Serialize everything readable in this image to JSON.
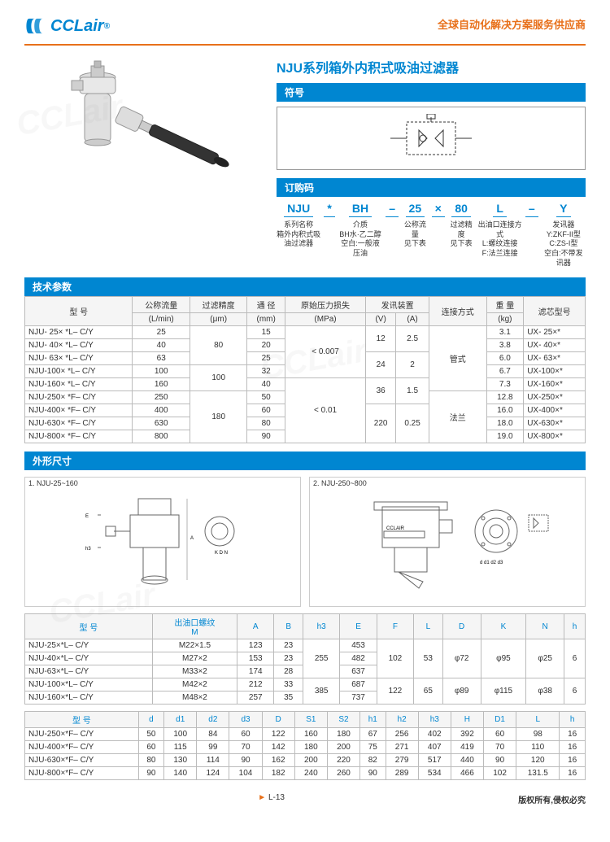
{
  "header": {
    "brand": "CCLair",
    "reg_mark": "®",
    "slogan": "全球自动化解决方案服务供应商"
  },
  "page_title": "NJU系列箱外内积式吸油过滤器",
  "sections": {
    "symbol": "符号",
    "order_code": "订购码",
    "tech_params": "技术参数",
    "dims": "外形尺寸"
  },
  "order_code": {
    "parts": [
      {
        "main": "NJU",
        "label": "系列名称",
        "sub": "箱外内积式吸油过滤器"
      },
      {
        "main": "*",
        "label": "",
        "sub": ""
      },
      {
        "main": "BH",
        "label": "介质",
        "sub": "BH水·乙二醇\n空白:一般液压油"
      },
      {
        "main": "–",
        "label": "",
        "sub": ""
      },
      {
        "main": "25",
        "label": "公称流量",
        "sub": "见下表"
      },
      {
        "main": "×",
        "label": "",
        "sub": ""
      },
      {
        "main": "80",
        "label": "过滤精度",
        "sub": "见下表"
      },
      {
        "main": "L",
        "label": "出油口连接方式",
        "sub": "L:螺纹连接\nF:法兰连接"
      },
      {
        "main": "–",
        "label": "",
        "sub": ""
      },
      {
        "main": "Y",
        "label": "发讯器",
        "sub": "Y:ZKF-II型\nC:ZS-I型\n空白:不带发讯器"
      }
    ]
  },
  "tech_params": {
    "columns": [
      "型 号",
      "公称流量\n(L/min)",
      "过滤精度\n(μm)",
      "通 径\n(mm)",
      "原始压力损失\n(MPa)",
      "发讯装置 (V)",
      "发讯装置 (A)",
      "连接方式",
      "重 量\n(kg)",
      "滤芯型号"
    ],
    "rows": [
      {
        "model": "NJU- 25× *L– C/Y",
        "flow": "25",
        "prec": "80",
        "dia": "15",
        "drop": "< 0.007",
        "v": "12",
        "a": "2.5",
        "conn": "管式",
        "wt": "3.1",
        "core": "UX- 25×*"
      },
      {
        "model": "NJU- 40× *L– C/Y",
        "flow": "40",
        "prec": "80",
        "dia": "20",
        "drop": "< 0.007",
        "v": "12",
        "a": "2.5",
        "conn": "管式",
        "wt": "3.8",
        "core": "UX- 40×*"
      },
      {
        "model": "NJU- 63× *L– C/Y",
        "flow": "63",
        "prec": "80",
        "dia": "25",
        "drop": "< 0.007",
        "v": "24",
        "a": "2",
        "conn": "管式",
        "wt": "6.0",
        "core": "UX- 63×*"
      },
      {
        "model": "NJU-100× *L– C/Y",
        "flow": "100",
        "prec": "100",
        "dia": "32",
        "drop": "< 0.007",
        "v": "24",
        "a": "2",
        "conn": "管式",
        "wt": "6.7",
        "core": "UX-100×*"
      },
      {
        "model": "NJU-160× *L– C/Y",
        "flow": "160",
        "prec": "100",
        "dia": "40",
        "drop": "< 0.01",
        "v": "36",
        "a": "1.5",
        "conn": "管式",
        "wt": "7.3",
        "core": "UX-160×*"
      },
      {
        "model": "NJU-250× *F– C/Y",
        "flow": "250",
        "prec": "180",
        "dia": "50",
        "drop": "< 0.01",
        "v": "36",
        "a": "1.5",
        "conn": "法兰",
        "wt": "12.8",
        "core": "UX-250×*"
      },
      {
        "model": "NJU-400× *F– C/Y",
        "flow": "400",
        "prec": "180",
        "dia": "60",
        "drop": "< 0.01",
        "v": "220",
        "a": "0.25",
        "conn": "法兰",
        "wt": "16.0",
        "core": "UX-400×*"
      },
      {
        "model": "NJU-630× *F– C/Y",
        "flow": "630",
        "prec": "180",
        "dia": "80",
        "drop": "< 0.01",
        "v": "220",
        "a": "0.25",
        "conn": "法兰",
        "wt": "18.0",
        "core": "UX-630×*"
      },
      {
        "model": "NJU-800× *F– C/Y",
        "flow": "800",
        "prec": "180",
        "dia": "90",
        "drop": "< 0.01",
        "v": "220",
        "a": "0.25",
        "conn": "法兰",
        "wt": "19.0",
        "core": "UX-800×*"
      }
    ],
    "merge_prec": [
      [
        "80",
        3
      ],
      [
        "100",
        2
      ],
      [
        "180",
        4
      ]
    ],
    "merge_drop": [
      [
        "< 0.007",
        4
      ],
      [
        "< 0.01",
        5
      ]
    ],
    "merge_v": [
      [
        "12",
        2
      ],
      [
        "24",
        2
      ],
      [
        "36",
        2
      ],
      [
        "220",
        3
      ]
    ],
    "merge_a": [
      [
        "2.5",
        2
      ],
      [
        "2",
        2
      ],
      [
        "1.5",
        2
      ],
      [
        "0.25",
        3
      ]
    ],
    "merge_conn": [
      [
        "管式",
        5
      ],
      [
        "法兰",
        4
      ]
    ]
  },
  "dim_titles": [
    "1. NJU-25~160",
    "2. NJU-250~800"
  ],
  "dim_table1": {
    "columns": [
      "型 号",
      "出油口螺纹\nM",
      "A",
      "B",
      "h3",
      "E",
      "F",
      "L",
      "D",
      "K",
      "N",
      "h"
    ],
    "rows": [
      [
        "NJU-25×*L– C/Y",
        "M22×1.5",
        "123",
        "23",
        "255",
        "453",
        "102",
        "53",
        "φ72",
        "φ95",
        "φ25",
        "6"
      ],
      [
        "NJU-40×*L– C/Y",
        "M27×2",
        "153",
        "23",
        "255",
        "482",
        "102",
        "53",
        "φ72",
        "φ95",
        "φ25",
        "6"
      ],
      [
        "NJU-63×*L– C/Y",
        "M33×2",
        "174",
        "28",
        "255",
        "637",
        "102",
        "53",
        "φ72",
        "φ95",
        "φ25",
        "6"
      ],
      [
        "NJU-100×*L– C/Y",
        "M42×2",
        "212",
        "33",
        "385",
        "687",
        "122",
        "65",
        "φ89",
        "φ115",
        "φ38",
        "6"
      ],
      [
        "NJU-160×*L– C/Y",
        "M48×2",
        "257",
        "35",
        "385",
        "737",
        "122",
        "65",
        "φ89",
        "φ115",
        "φ38",
        "6"
      ]
    ],
    "merge_h3": [
      [
        "255",
        3
      ],
      [
        "385",
        2
      ]
    ],
    "merge_F": [
      [
        "102",
        3
      ],
      [
        "122",
        2
      ]
    ],
    "merge_L": [
      [
        "53",
        3
      ],
      [
        "65",
        2
      ]
    ],
    "merge_D": [
      [
        "φ72",
        3
      ],
      [
        "φ89",
        2
      ]
    ],
    "merge_K": [
      [
        "φ95",
        3
      ],
      [
        "φ115",
        2
      ]
    ],
    "merge_N": [
      [
        "φ25",
        3
      ],
      [
        "φ38",
        2
      ]
    ],
    "merge_h": [
      [
        "6",
        3
      ],
      [
        "6",
        2
      ]
    ]
  },
  "dim_table2": {
    "columns": [
      "型 号",
      "d",
      "d1",
      "d2",
      "d3",
      "D",
      "S1",
      "S2",
      "h1",
      "h2",
      "h3",
      "H",
      "D1",
      "L",
      "h"
    ],
    "rows": [
      [
        "NJU-250×*F– C/Y",
        "50",
        "100",
        "84",
        "60",
        "122",
        "160",
        "180",
        "67",
        "256",
        "402",
        "392",
        "60",
        "98",
        "16"
      ],
      [
        "NJU-400×*F– C/Y",
        "60",
        "115",
        "99",
        "70",
        "142",
        "180",
        "200",
        "75",
        "271",
        "407",
        "419",
        "70",
        "110",
        "16"
      ],
      [
        "NJU-630×*F– C/Y",
        "80",
        "130",
        "114",
        "90",
        "162",
        "200",
        "220",
        "82",
        "279",
        "517",
        "440",
        "90",
        "120",
        "16"
      ],
      [
        "NJU-800×*F– C/Y",
        "90",
        "140",
        "124",
        "104",
        "182",
        "240",
        "260",
        "90",
        "289",
        "534",
        "466",
        "102",
        "131.5",
        "16"
      ]
    ]
  },
  "footer": {
    "page_mark": "►",
    "page_num": "L-13",
    "copyright": "版权所有,侵权必究"
  },
  "colors": {
    "brand": "#0086d1",
    "accent": "#e8701a",
    "border": "#bbbbbb"
  }
}
